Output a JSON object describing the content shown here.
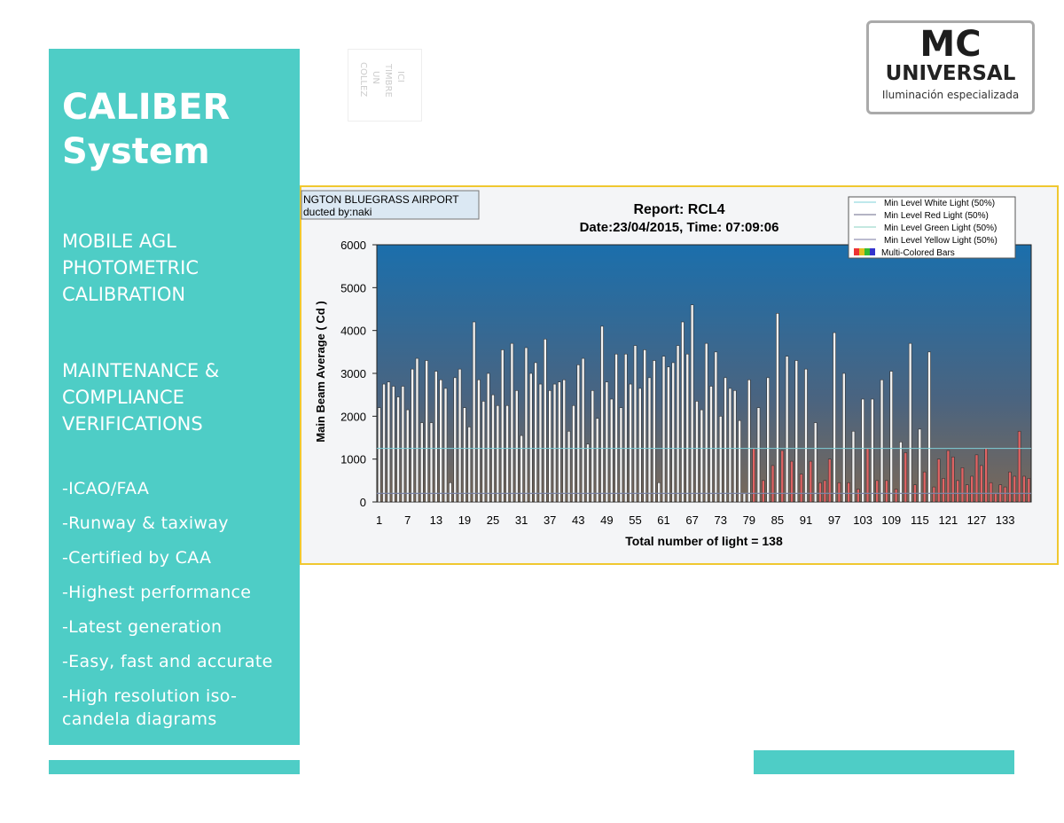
{
  "sidebar": {
    "title": [
      "CALIBER",
      "System"
    ],
    "section1": [
      "MOBILE AGL",
      "PHOTOMETRIC",
      "CALIBRATION"
    ],
    "section2": [
      "MAINTENANCE &",
      "COMPLIANCE",
      "VERIFICATIONS"
    ],
    "items": [
      "-ICAO/FAA",
      "-Runway & taxiway",
      "-Certified by CAA",
      "-Highest performance",
      "-Latest generation",
      "-Easy, fast and accurate",
      "-High resolution iso-",
      "candela diagrams"
    ]
  },
  "stamp": [
    "COLLEZ",
    "UN",
    "TIMBRE",
    "ICI"
  ],
  "logo": {
    "mark": "MC",
    "name": "UNIVERSAL",
    "tagline": "Iluminación especializada"
  },
  "chart_data": {
    "type": "bar",
    "info": [
      "NGTON BLUEGRASS AIRPORT",
      "ducted by:naki"
    ],
    "title": "Report: RCL4",
    "subtitle": "Date:23/04/2015, Time: 07:09:06",
    "y_label": "Main Beam Average ( Cd )",
    "x_label": "Total number of light = 138",
    "ylim": [
      0,
      6000
    ],
    "yticks": [
      0,
      1000,
      2000,
      3000,
      4000,
      5000,
      6000
    ],
    "categories": [
      "1",
      null,
      null,
      null,
      null,
      null,
      "7",
      null,
      null,
      null,
      null,
      null,
      "13",
      null,
      null,
      null,
      null,
      null,
      "19",
      null,
      null,
      null,
      null,
      null,
      "25",
      null,
      null,
      null,
      null,
      null,
      "31",
      null,
      null,
      null,
      null,
      null,
      "37",
      null,
      null,
      null,
      null,
      null,
      "43",
      null,
      null,
      null,
      null,
      null,
      "49",
      null,
      null,
      null,
      null,
      null,
      "55",
      null,
      null,
      null,
      null,
      null,
      "61",
      null,
      null,
      null,
      null,
      null,
      "67",
      null,
      null,
      null,
      null,
      null,
      "73",
      null,
      null,
      null,
      null,
      null,
      "79",
      null,
      null,
      null,
      null,
      null,
      "85",
      null,
      null,
      null,
      null,
      null,
      "91",
      null,
      null,
      null,
      null,
      null,
      "97",
      null,
      null,
      null,
      null,
      null,
      "103",
      null,
      null,
      null,
      null,
      null,
      "109",
      null,
      null,
      null,
      null,
      null,
      "115",
      null,
      null,
      null,
      null,
      null,
      "121",
      null,
      null,
      null,
      null,
      null,
      "127",
      null,
      null,
      null,
      null,
      null,
      "133",
      null,
      null,
      null,
      null,
      null
    ],
    "bar_name": "Multi-Colored Bars",
    "values": [
      2200,
      2750,
      2800,
      2700,
      2450,
      2700,
      2150,
      3100,
      3350,
      1850,
      3300,
      1850,
      3050,
      2850,
      2650,
      450,
      2900,
      3100,
      2200,
      1750,
      4200,
      2850,
      2350,
      3000,
      2500,
      2250,
      3550,
      2250,
      3700,
      2600,
      1550,
      3600,
      3000,
      3250,
      2750,
      3800,
      2600,
      2750,
      2800,
      2850,
      1650,
      2250,
      3200,
      3350,
      1350,
      2600,
      1950,
      4100,
      2800,
      2400,
      3450,
      2200,
      3450,
      2750,
      3650,
      2650,
      3550,
      2900,
      3300,
      450,
      3400,
      3150,
      3250,
      3650,
      4200,
      3450,
      4600,
      2350,
      2150,
      3700,
      2700,
      3500,
      2000,
      2900,
      2650,
      2600,
      1900,
      200,
      2850,
      1250,
      2200,
      500,
      2900,
      850,
      4400,
      1200,
      3400,
      950,
      3300,
      650,
      3100,
      950,
      1850,
      450,
      500,
      1000,
      3950,
      450,
      3000,
      450,
      1650,
      300,
      2400,
      1250,
      2400,
      500,
      2850,
      500,
      3050,
      300,
      1400,
      1150,
      3700,
      400,
      1700,
      700,
      3500,
      350,
      1000,
      550,
      1200,
      1050,
      500,
      800,
      400,
      600,
      1100,
      850,
      1250,
      450,
      200,
      400,
      350,
      700,
      600,
      1650,
      600,
      550
    ],
    "colors": [
      "#f2f2f2",
      "#f2f2f2",
      "#f2f2f2",
      "#f2f2f2",
      "#f2f2f2",
      "#f2f2f2",
      "#f2f2f2",
      "#f2f2f2",
      "#f2f2f2",
      "#f2f2f2",
      "#f2f2f2",
      "#f2f2f2",
      "#f2f2f2",
      "#f2f2f2",
      "#f2f2f2",
      "#f2f2f2",
      "#f2f2f2",
      "#f2f2f2",
      "#f2f2f2",
      "#f2f2f2",
      "#f2f2f2",
      "#f2f2f2",
      "#f2f2f2",
      "#f2f2f2",
      "#f2f2f2",
      "#f2f2f2",
      "#f2f2f2",
      "#f2f2f2",
      "#f2f2f2",
      "#f2f2f2",
      "#f2f2f2",
      "#f2f2f2",
      "#f2f2f2",
      "#f2f2f2",
      "#f2f2f2",
      "#f2f2f2",
      "#f2f2f2",
      "#f2f2f2",
      "#f2f2f2",
      "#f2f2f2",
      "#f2f2f2",
      "#f2f2f2",
      "#f2f2f2",
      "#f2f2f2",
      "#f2f2f2",
      "#f2f2f2",
      "#f2f2f2",
      "#f2f2f2",
      "#f2f2f2",
      "#f2f2f2",
      "#f2f2f2",
      "#f2f2f2",
      "#f2f2f2",
      "#f2f2f2",
      "#f2f2f2",
      "#f2f2f2",
      "#f2f2f2",
      "#f2f2f2",
      "#f2f2f2",
      "#f2f2f2",
      "#f2f2f2",
      "#f2f2f2",
      "#f2f2f2",
      "#f2f2f2",
      "#f2f2f2",
      "#f2f2f2",
      "#f2f2f2",
      "#f2f2f2",
      "#f2f2f2",
      "#f2f2f2",
      "#f2f2f2",
      "#f2f2f2",
      "#f2f2f2",
      "#f2f2f2",
      "#f2f2f2",
      "#f2f2f2",
      "#f2f2f2",
      "#f2f2f2",
      "#f2f2f2",
      "#e06464",
      "#f2f2f2",
      "#e06464",
      "#f2f2f2",
      "#e06464",
      "#f2f2f2",
      "#e06464",
      "#f2f2f2",
      "#e06464",
      "#f2f2f2",
      "#e06464",
      "#f2f2f2",
      "#e06464",
      "#f2f2f2",
      "#e06464",
      "#e06464",
      "#e06464",
      "#f2f2f2",
      "#e06464",
      "#f2f2f2",
      "#e06464",
      "#f2f2f2",
      "#e06464",
      "#f2f2f2",
      "#e06464",
      "#f2f2f2",
      "#e06464",
      "#f2f2f2",
      "#e06464",
      "#f2f2f2",
      "#e06464",
      "#f2f2f2",
      "#e06464",
      "#f2f2f2",
      "#e06464",
      "#f2f2f2",
      "#e06464",
      "#f2f2f2",
      "#e06464",
      "#e06464",
      "#e06464",
      "#e06464",
      "#e06464",
      "#e06464",
      "#e06464",
      "#e06464",
      "#e06464",
      "#e06464",
      "#e06464",
      "#e06464",
      "#e06464",
      "#e06464",
      "#e06464",
      "#e06464",
      "#e06464",
      "#e06464",
      "#e06464",
      "#e06464",
      "#e06464"
    ],
    "levels": [
      {
        "name": "Min Level White Light (50%)",
        "color": "#7fd0d8",
        "value": 1250
      },
      {
        "name": "Min Level Red Light (50%)",
        "color": "#6a6a8a",
        "value": 200
      },
      {
        "name": "Min Level Green Light (50%)",
        "color": "#8ad0c0",
        "value": 200
      },
      {
        "name": "Min Level Yellow Light (50%)",
        "color": "#7a7aa0",
        "value": 200
      }
    ]
  }
}
